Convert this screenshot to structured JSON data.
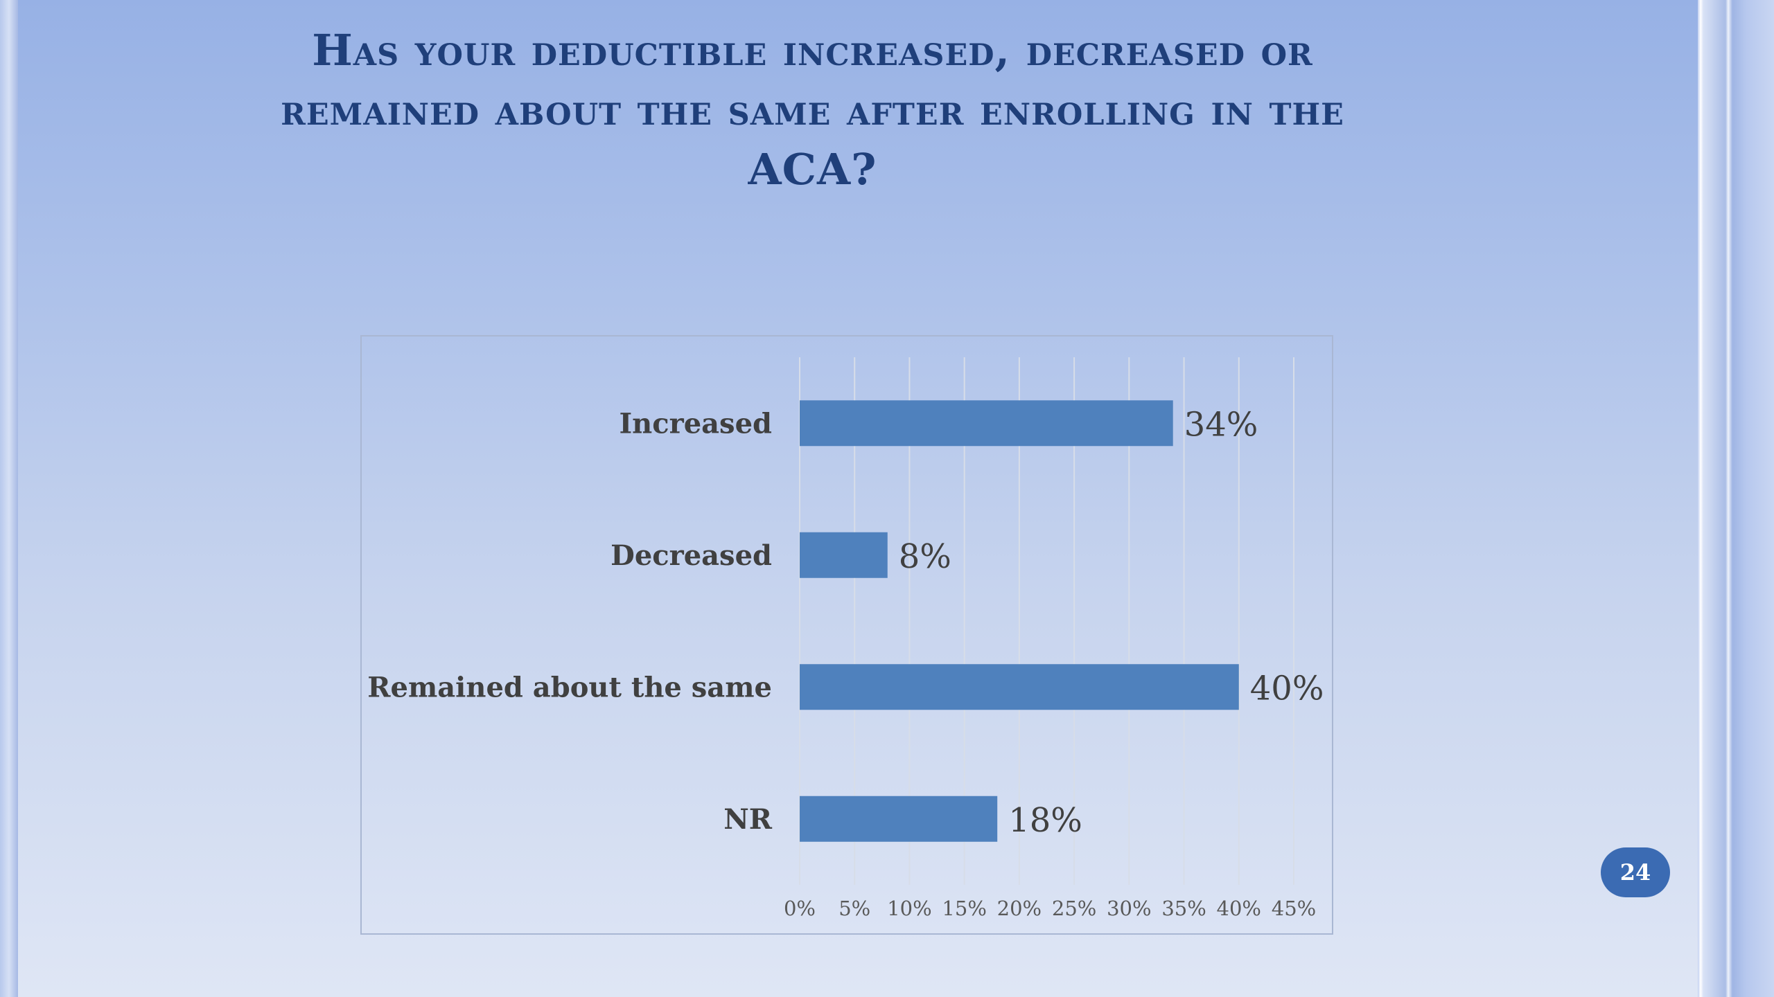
{
  "slide": {
    "title_line1": "Has your deductible increased, decreased or",
    "title_line2": "remained about the same after enrolling in the",
    "title_line3": "ACA?",
    "page_number": "24"
  },
  "colors": {
    "bar": "#4f81bd",
    "title": "#1f3f7a",
    "badge": "#3b6bb3"
  },
  "chart_data": {
    "type": "bar",
    "orientation": "horizontal",
    "title": "",
    "xlabel": "",
    "ylabel": "",
    "categories": [
      "Increased",
      "Decreased",
      "Remained about the same",
      "NR"
    ],
    "values": [
      34,
      8,
      40,
      18
    ],
    "data_labels": [
      "34%",
      "8%",
      "40%",
      "18%"
    ],
    "xlim": [
      0,
      45
    ],
    "x_ticks": [
      0,
      5,
      10,
      15,
      20,
      25,
      30,
      35,
      40,
      45
    ],
    "x_tick_labels": [
      "0%",
      "5%",
      "10%",
      "15%",
      "20%",
      "25%",
      "30%",
      "35%",
      "40%",
      "45%"
    ],
    "grid": true,
    "legend": "none"
  }
}
